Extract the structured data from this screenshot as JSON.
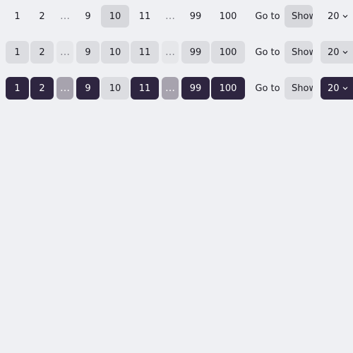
{
  "pages": [
    "1",
    "2",
    "9",
    "10",
    "11",
    "99",
    "100"
  ],
  "ellipsis": "…",
  "goto_label": "Go to",
  "show_value": "Show",
  "page_size": "20",
  "current_page": "10",
  "rows": [
    {
      "variant": "plain"
    },
    {
      "variant": "light"
    },
    {
      "variant": "dark"
    }
  ],
  "colors": {
    "background": "#eff0f3",
    "light_fill": "#dcdde1",
    "dark_fill": "#2e2540",
    "dark_ellipsis": "#a7a3ae",
    "text": "#1a1a22"
  },
  "icons": {
    "dropdown": "chevron-down-icon"
  }
}
